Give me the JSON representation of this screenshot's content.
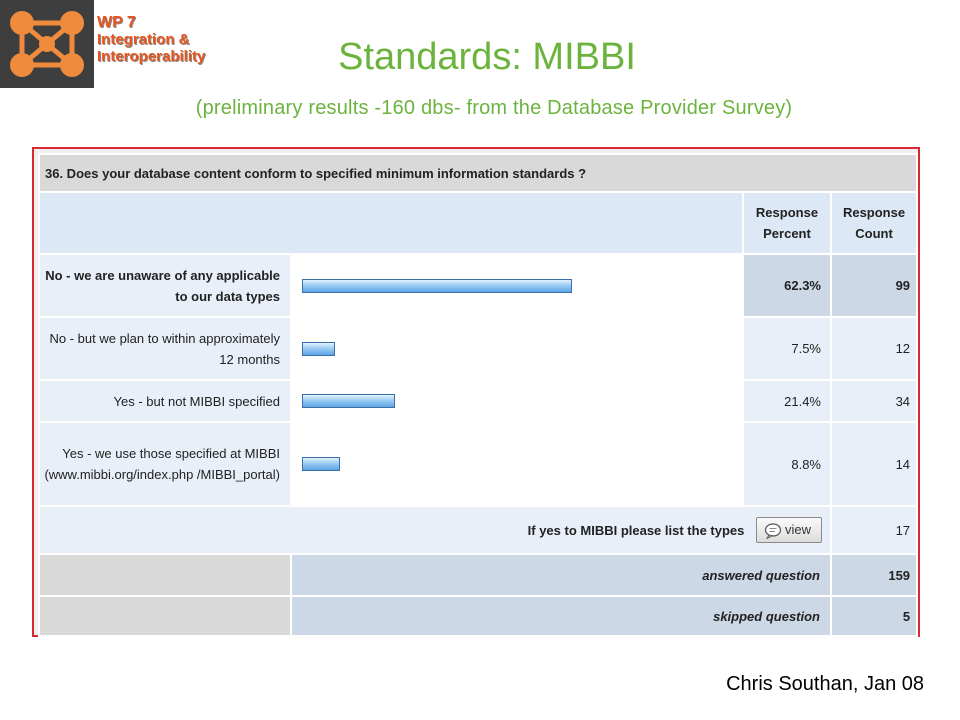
{
  "header": {
    "wp_number": "WP 7",
    "wp_line1": "Integration &",
    "wp_line2": "Interoperability",
    "title": "Standards: MIBBI",
    "subtitle": "(preliminary results -160 dbs- from the Database Provider Survey)"
  },
  "survey": {
    "question": "36. Does your database content conform to specified minimum information standards ?",
    "col_percent": "Response Percent",
    "col_count": "Response Count",
    "rows": [
      {
        "label": "No - we are unaware of any applicable to our data types",
        "percent": "62.3%",
        "count": "99",
        "value": 62.3
      },
      {
        "label": "No - but we plan to within approximately 12 months",
        "percent": "7.5%",
        "count": "12",
        "value": 7.5
      },
      {
        "label": "Yes - but not MIBBI specified",
        "percent": "21.4%",
        "count": "34",
        "value": 21.4
      },
      {
        "label": "Yes - we use those specified at MIBBI (www.mibbi.org/index.php /MIBBI_portal)",
        "percent": "8.8%",
        "count": "14",
        "value": 8.8
      }
    ],
    "other_label": "If yes to MIBBI please list the types",
    "view_label": "view",
    "other_count": "17",
    "answered_label": "answered question",
    "answered_count": "159",
    "skipped_label": "skipped question",
    "skipped_count": "5"
  },
  "footer": {
    "author": "Chris Southan, Jan 08"
  },
  "icons": {
    "logo": "network-logo-icon",
    "view": "speech-bubble-icon"
  },
  "colors": {
    "title_green": "#6cb33e",
    "wp_orange": "#e8541c",
    "panel_border": "#d9282f",
    "bar_blue": "#5ea4e6"
  }
}
